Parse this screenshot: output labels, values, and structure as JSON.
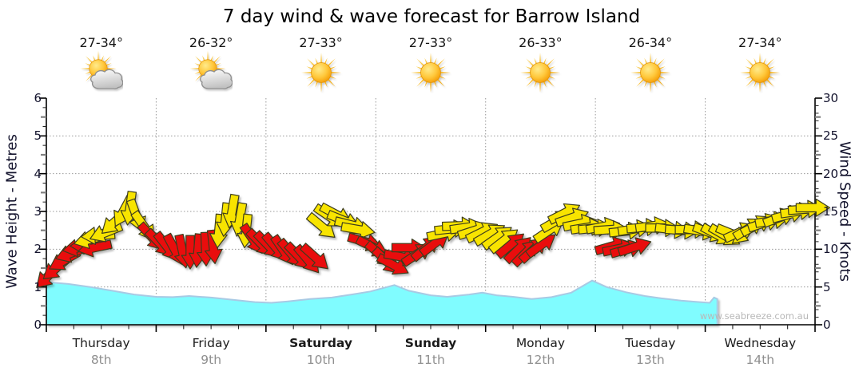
{
  "title": "7 day wind & wave forecast for Barrow Island",
  "watermark": "www.seabreeze.com.au",
  "y_left_axis": {
    "title": "Wave Height - Metres",
    "ticks": [
      "0",
      "1",
      "2",
      "3",
      "4",
      "5",
      "6"
    ]
  },
  "y_right_axis": {
    "title": "Wind Speed - Knots",
    "ticks": [
      "0",
      "5",
      "10",
      "15",
      "20",
      "25",
      "30"
    ]
  },
  "days": [
    {
      "name": "Thursday",
      "date": "8th",
      "temp": "27-34°",
      "icon": "sun-cloud",
      "bold": false
    },
    {
      "name": "Friday",
      "date": "9th",
      "temp": "26-32°",
      "icon": "sun-cloud",
      "bold": false
    },
    {
      "name": "Saturday",
      "date": "10th",
      "temp": "27-33°",
      "icon": "sun",
      "bold": true
    },
    {
      "name": "Sunday",
      "date": "11th",
      "temp": "27-33°",
      "icon": "sun",
      "bold": true
    },
    {
      "name": "Monday",
      "date": "12th",
      "temp": "26-33°",
      "icon": "sun",
      "bold": false
    },
    {
      "name": "Tuesday",
      "date": "13th",
      "temp": "26-34°",
      "icon": "sun",
      "bold": false
    },
    {
      "name": "Wednesday",
      "date": "14th",
      "temp": "27-34°",
      "icon": "sun",
      "bold": false
    }
  ],
  "colors": {
    "arrow_red": "#E90F0F",
    "arrow_yellow": "#F8E400",
    "arrow_outline": "#3c3c1e",
    "wave_fill": "#80FCFF",
    "wave_edge": "#A8CAE4",
    "grid": "#999999",
    "axis": "#000000",
    "mid_tick": "#808080"
  },
  "chart_data": {
    "type": "area+wind-vectors",
    "title": "7 day wind & wave forecast for Barrow Island",
    "x_unit": "days (0 = Thursday 8th 00:00)",
    "x_range": [
      0,
      7
    ],
    "y_left": {
      "label": "Wave Height - Metres",
      "range": [
        0,
        6
      ],
      "gridlines_at": [
        1,
        2,
        3,
        4,
        5
      ]
    },
    "y_right": {
      "label": "Wind Speed - Knots",
      "range": [
        0,
        30
      ],
      "gridlines_at": [
        5,
        10,
        15,
        20,
        25
      ]
    },
    "grid": "dotted, vertical lines at each day boundary",
    "wave_height_m": [
      [
        0,
        1.13
      ],
      [
        0.2,
        1.08
      ],
      [
        0.4,
        1.0
      ],
      [
        0.6,
        0.9
      ],
      [
        0.8,
        0.8
      ],
      [
        1.0,
        0.74
      ],
      [
        1.15,
        0.73
      ],
      [
        1.3,
        0.76
      ],
      [
        1.5,
        0.72
      ],
      [
        1.7,
        0.66
      ],
      [
        1.9,
        0.6
      ],
      [
        2.05,
        0.58
      ],
      [
        2.2,
        0.62
      ],
      [
        2.4,
        0.68
      ],
      [
        2.6,
        0.72
      ],
      [
        2.78,
        0.8
      ],
      [
        2.95,
        0.88
      ],
      [
        3.17,
        1.05
      ],
      [
        3.3,
        0.9
      ],
      [
        3.5,
        0.78
      ],
      [
        3.65,
        0.74
      ],
      [
        3.85,
        0.8
      ],
      [
        3.97,
        0.85
      ],
      [
        4.1,
        0.78
      ],
      [
        4.25,
        0.74
      ],
      [
        4.42,
        0.68
      ],
      [
        4.6,
        0.73
      ],
      [
        4.78,
        0.85
      ],
      [
        4.97,
        1.17
      ],
      [
        5.1,
        1.0
      ],
      [
        5.28,
        0.86
      ],
      [
        5.45,
        0.76
      ],
      [
        5.6,
        0.7
      ],
      [
        5.78,
        0.64
      ],
      [
        5.95,
        0.6
      ],
      [
        6.04,
        0.58
      ],
      [
        6.08,
        0.72
      ],
      [
        6.11,
        0.68
      ]
    ],
    "wind_arrows_comment": "[t_days, speed_knots, direction_deg_cw_from_east, color r=red y=yellow]",
    "wind_arrows": [
      [
        0.02,
        6.5,
        135,
        "r"
      ],
      [
        0.09,
        7.5,
        140,
        "r"
      ],
      [
        0.16,
        8.5,
        150,
        "r"
      ],
      [
        0.23,
        9.5,
        160,
        "r"
      ],
      [
        0.3,
        10.2,
        170,
        "r"
      ],
      [
        0.37,
        10.5,
        178,
        "r"
      ],
      [
        0.44,
        10.2,
        168,
        "r"
      ],
      [
        0.4,
        11.3,
        165,
        "y"
      ],
      [
        0.47,
        11.8,
        176,
        "y"
      ],
      [
        0.54,
        12.2,
        158,
        "y"
      ],
      [
        0.62,
        13.6,
        138,
        "y"
      ],
      [
        0.7,
        15.0,
        118,
        "y"
      ],
      [
        0.76,
        15.4,
        98,
        "y"
      ],
      [
        0.82,
        14.4,
        70,
        "y"
      ],
      [
        0.89,
        13.0,
        55,
        "y"
      ],
      [
        0.96,
        11.6,
        48,
        "r"
      ],
      [
        1.03,
        10.8,
        46,
        "r"
      ],
      [
        1.1,
        10.3,
        52,
        "r"
      ],
      [
        1.17,
        9.9,
        62,
        "r"
      ],
      [
        1.24,
        9.7,
        78,
        "r"
      ],
      [
        1.31,
        9.6,
        90,
        "r"
      ],
      [
        1.38,
        9.8,
        95,
        "r"
      ],
      [
        1.45,
        10.0,
        88,
        "r"
      ],
      [
        1.52,
        10.3,
        84,
        "r"
      ],
      [
        1.57,
        12.4,
        95,
        "y"
      ],
      [
        1.63,
        13.9,
        96,
        "y"
      ],
      [
        1.69,
        15.0,
        100,
        "y"
      ],
      [
        1.76,
        13.9,
        100,
        "y"
      ],
      [
        1.82,
        12.4,
        96,
        "y"
      ],
      [
        1.88,
        11.3,
        56,
        "r"
      ],
      [
        1.95,
        10.8,
        46,
        "r"
      ],
      [
        2.02,
        10.5,
        46,
        "r"
      ],
      [
        2.09,
        10.2,
        50,
        "r"
      ],
      [
        2.16,
        9.8,
        56,
        "r"
      ],
      [
        2.23,
        9.4,
        50,
        "r"
      ],
      [
        2.3,
        9.0,
        46,
        "r"
      ],
      [
        2.38,
        8.6,
        50,
        "r"
      ],
      [
        2.45,
        8.9,
        42,
        "r"
      ],
      [
        2.51,
        13.0,
        40,
        "y"
      ],
      [
        2.58,
        14.3,
        34,
        "y"
      ],
      [
        2.64,
        14.6,
        28,
        "y"
      ],
      [
        2.71,
        13.8,
        22,
        "y"
      ],
      [
        2.78,
        13.2,
        14,
        "y"
      ],
      [
        2.84,
        12.6,
        10,
        "y"
      ],
      [
        2.9,
        11.0,
        16,
        "r"
      ],
      [
        2.97,
        10.3,
        26,
        "r"
      ],
      [
        3.04,
        9.3,
        40,
        "r"
      ],
      [
        3.1,
        8.4,
        44,
        "r"
      ],
      [
        3.16,
        7.9,
        28,
        "r"
      ],
      [
        3.23,
        9.0,
        10,
        "r"
      ],
      [
        3.3,
        10.2,
        0,
        "r"
      ],
      [
        3.38,
        9.4,
        -34,
        "r"
      ],
      [
        3.46,
        10.2,
        -40,
        "r"
      ],
      [
        3.54,
        10.8,
        -37,
        "r"
      ],
      [
        3.62,
        12.1,
        -12,
        "y"
      ],
      [
        3.69,
        12.7,
        -6,
        "y"
      ],
      [
        3.76,
        13.1,
        -2,
        "y"
      ],
      [
        3.83,
        12.9,
        -8,
        "y"
      ],
      [
        3.9,
        12.5,
        -18,
        "y"
      ],
      [
        3.97,
        12.3,
        -26,
        "y"
      ],
      [
        4.04,
        12.0,
        -30,
        "y"
      ],
      [
        4.11,
        11.6,
        -35,
        "y"
      ],
      [
        4.17,
        11.2,
        -38,
        "y"
      ],
      [
        4.23,
        10.6,
        -40,
        "r"
      ],
      [
        4.3,
        10.0,
        -44,
        "r"
      ],
      [
        4.37,
        9.6,
        -45,
        "r"
      ],
      [
        4.44,
        10.0,
        -42,
        "r"
      ],
      [
        4.51,
        10.6,
        -36,
        "r"
      ],
      [
        4.58,
        12.5,
        -34,
        "y"
      ],
      [
        4.65,
        13.8,
        -30,
        "y"
      ],
      [
        4.72,
        14.8,
        -27,
        "y"
      ],
      [
        4.79,
        14.2,
        -19,
        "y"
      ],
      [
        4.86,
        13.4,
        -12,
        "y"
      ],
      [
        4.93,
        12.9,
        -9,
        "y"
      ],
      [
        5.0,
        12.8,
        -6,
        "y"
      ],
      [
        5.07,
        13.0,
        -11,
        "y"
      ],
      [
        5.14,
        12.6,
        -4,
        "y"
      ],
      [
        5.15,
        10.4,
        -16,
        "r"
      ],
      [
        5.22,
        10.1,
        -12,
        "r"
      ],
      [
        5.29,
        10.0,
        -16,
        "r"
      ],
      [
        5.36,
        10.3,
        -18,
        "r"
      ],
      [
        5.28,
        12.4,
        -6,
        "y"
      ],
      [
        5.36,
        12.7,
        -9,
        "y"
      ],
      [
        5.44,
        12.9,
        -5,
        "y"
      ],
      [
        5.52,
        13.1,
        -8,
        "y"
      ],
      [
        5.61,
        12.8,
        0,
        "y"
      ],
      [
        5.7,
        12.6,
        7,
        "y"
      ],
      [
        5.79,
        12.5,
        4,
        "y"
      ],
      [
        5.88,
        12.6,
        0,
        "y"
      ],
      [
        5.96,
        12.4,
        9,
        "y"
      ],
      [
        6.04,
        12.2,
        20,
        "y"
      ],
      [
        6.11,
        11.9,
        28,
        "y"
      ],
      [
        6.18,
        11.8,
        30,
        "y"
      ],
      [
        6.25,
        12.0,
        22,
        "y"
      ],
      [
        6.32,
        12.3,
        -24,
        "y"
      ],
      [
        6.4,
        12.8,
        -32,
        "y"
      ],
      [
        6.47,
        13.2,
        -28,
        "y"
      ],
      [
        6.54,
        13.5,
        -18,
        "y"
      ],
      [
        6.61,
        13.8,
        -10,
        "y"
      ],
      [
        6.68,
        14.2,
        -20,
        "y"
      ],
      [
        6.76,
        14.6,
        -15,
        "y"
      ],
      [
        6.84,
        15.0,
        -8,
        "y"
      ],
      [
        6.91,
        15.3,
        -4,
        "y"
      ],
      [
        6.98,
        15.5,
        0,
        "y"
      ]
    ]
  }
}
